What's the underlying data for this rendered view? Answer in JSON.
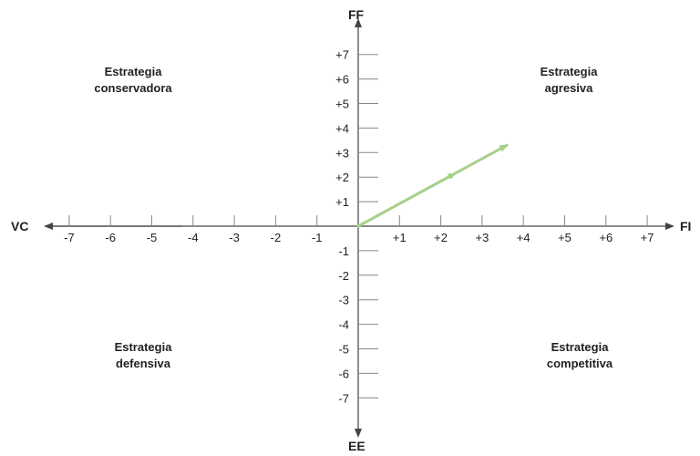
{
  "axes": {
    "top_label": "FF",
    "bottom_label": "EE",
    "left_label": "VC",
    "right_label": "FI",
    "x_ticks": [
      "-7",
      "-6",
      "-5",
      "-4",
      "-3",
      "-2",
      "-1",
      "+1",
      "+2",
      "+3",
      "+4",
      "+5",
      "+6",
      "+7"
    ],
    "y_ticks": [
      "+7",
      "+6",
      "+5",
      "+4",
      "+3",
      "+2",
      "+1",
      "-1",
      "-2",
      "-3",
      "-4",
      "-5",
      "-6",
      "-7"
    ],
    "range": [
      -7,
      7
    ]
  },
  "quadrants": {
    "top_left": [
      "Estrategia",
      "conservadora"
    ],
    "top_right": [
      "Estrategia",
      "agresiva"
    ],
    "bottom_left": [
      "Estrategia",
      "defensiva"
    ],
    "bottom_right": [
      "Estrategia",
      "competitiva"
    ]
  },
  "vector": {
    "x": 3.6,
    "y": 3.3,
    "color": "#a8d08d"
  },
  "colors": {
    "axis": "#444444",
    "tick": "#888888"
  }
}
